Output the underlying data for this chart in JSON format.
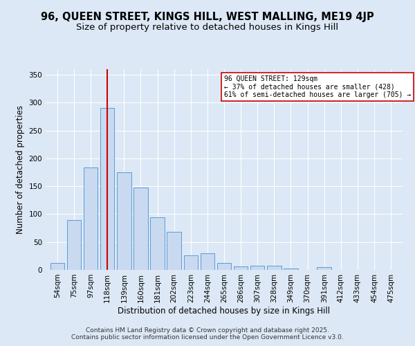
{
  "title1": "96, QUEEN STREET, KINGS HILL, WEST MALLING, ME19 4JP",
  "title2": "Size of property relative to detached houses in Kings Hill",
  "xlabel": "Distribution of detached houses by size in Kings Hill",
  "ylabel": "Number of detached properties",
  "categories": [
    "54sqm",
    "75sqm",
    "97sqm",
    "118sqm",
    "139sqm",
    "160sqm",
    "181sqm",
    "202sqm",
    "223sqm",
    "244sqm",
    "265sqm",
    "286sqm",
    "307sqm",
    "328sqm",
    "349sqm",
    "370sqm",
    "391sqm",
    "412sqm",
    "433sqm",
    "454sqm",
    "475sqm"
  ],
  "values": [
    12,
    89,
    184,
    290,
    175,
    148,
    94,
    68,
    26,
    30,
    13,
    6,
    7,
    8,
    3,
    0,
    5,
    0,
    0,
    0,
    0
  ],
  "bar_color": "#c8d9f0",
  "bar_edge_color": "#5b9bd5",
  "vline_x": 3,
  "vline_color": "#cc0000",
  "annotation_text": "96 QUEEN STREET: 129sqm\n← 37% of detached houses are smaller (428)\n61% of semi-detached houses are larger (705) →",
  "annotation_box_color": "#ffffff",
  "annotation_box_edge": "#cc0000",
  "ylim": [
    0,
    360
  ],
  "yticks": [
    0,
    50,
    100,
    150,
    200,
    250,
    300,
    350
  ],
  "bg_color": "#dce8f5",
  "plot_bg_color": "#dce8f5",
  "footer": "Contains HM Land Registry data © Crown copyright and database right 2025.\nContains public sector information licensed under the Open Government Licence v3.0.",
  "title1_fontsize": 10.5,
  "title2_fontsize": 9.5,
  "axis_label_fontsize": 8.5,
  "tick_fontsize": 7.5,
  "footer_fontsize": 6.5
}
